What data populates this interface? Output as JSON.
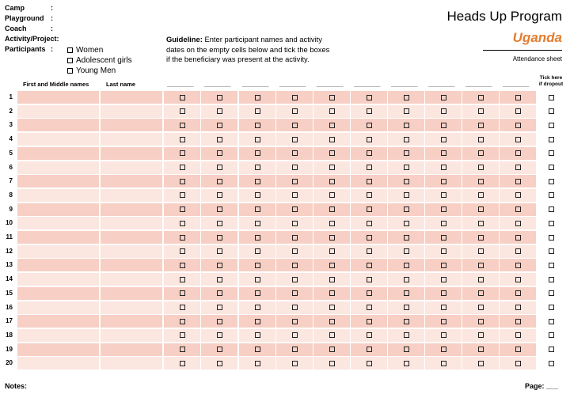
{
  "header": {
    "fields": [
      {
        "label": "Camp",
        "colon": ":"
      },
      {
        "label": "Playground",
        "colon": ":"
      },
      {
        "label": "Coach",
        "colon": ":"
      },
      {
        "label": "Activity/Project:",
        "colon": ""
      },
      {
        "label": "Participants",
        "colon": ":"
      }
    ],
    "participant_options": [
      "Women",
      "Adolescent girls",
      "Young Men"
    ]
  },
  "guideline": {
    "label": "Guideline:",
    "text": "Enter participant names and activity dates on the empty cells below and tick the boxes if the beneficiary was present at the activity.",
    "line1_rest": "Enter participant names and activity",
    "line2": "dates on the empty cells below and tick the boxes",
    "line3": "if the beneficiary was present at the activity."
  },
  "branding": {
    "program": "Heads Up Program",
    "country": "Uganda",
    "sheet_type": "Attendance sheet"
  },
  "table": {
    "columns": {
      "first_name": "First and Middle names",
      "last_name": "Last name",
      "date_placeholder": "________",
      "dropout_line1": "Tick here",
      "dropout_line2": "if dropout"
    },
    "date_column_count": 10,
    "row_numbers": [
      "1",
      "2",
      "3",
      "4",
      "5",
      "6",
      "7",
      "8",
      "9",
      "10",
      "11",
      "12",
      "13",
      "14",
      "15",
      "16",
      "17",
      "18",
      "19",
      "20"
    ]
  },
  "footer": {
    "notes_label": "Notes:",
    "page_label": "Page: ___"
  },
  "colors": {
    "accent": "#e57c2e",
    "row_dark": "#f7cfc4",
    "row_light": "#fbe6e0"
  }
}
